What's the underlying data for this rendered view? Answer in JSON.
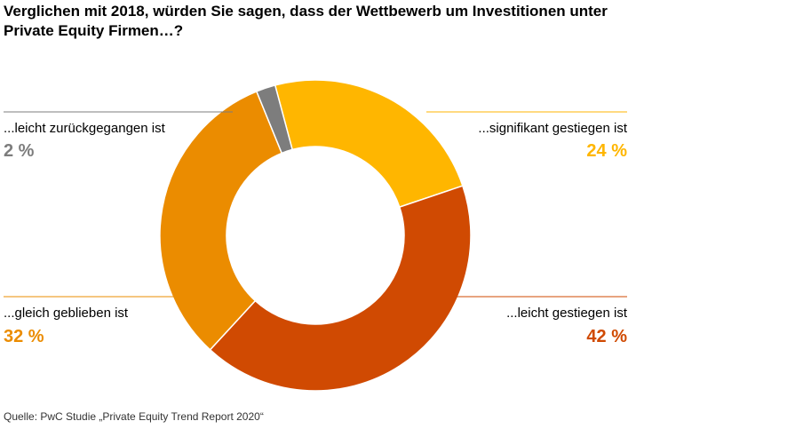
{
  "title": "Verglichen mit 2018, würden Sie sagen, dass der Wettbewerb um Investitionen unter Private Equity Firmen…?",
  "source": "Quelle: PwC Studie „Private Equity Trend Report 2020“",
  "chart_data": {
    "type": "pie",
    "donut": true,
    "slices": [
      {
        "label": "...signifikant gestiegen ist",
        "value": 24,
        "display": "24 %",
        "color": "#FFB600"
      },
      {
        "label": "...leicht gestiegen ist",
        "value": 42,
        "display": "42 %",
        "color": "#D04A02"
      },
      {
        "label": "...gleich geblieben ist",
        "value": 32,
        "display": "32 %",
        "color": "#EB8C00"
      },
      {
        "label": "...leicht zurückgegangen ist",
        "value": 2,
        "display": "2 %",
        "color": "#7D7D7D"
      }
    ]
  }
}
